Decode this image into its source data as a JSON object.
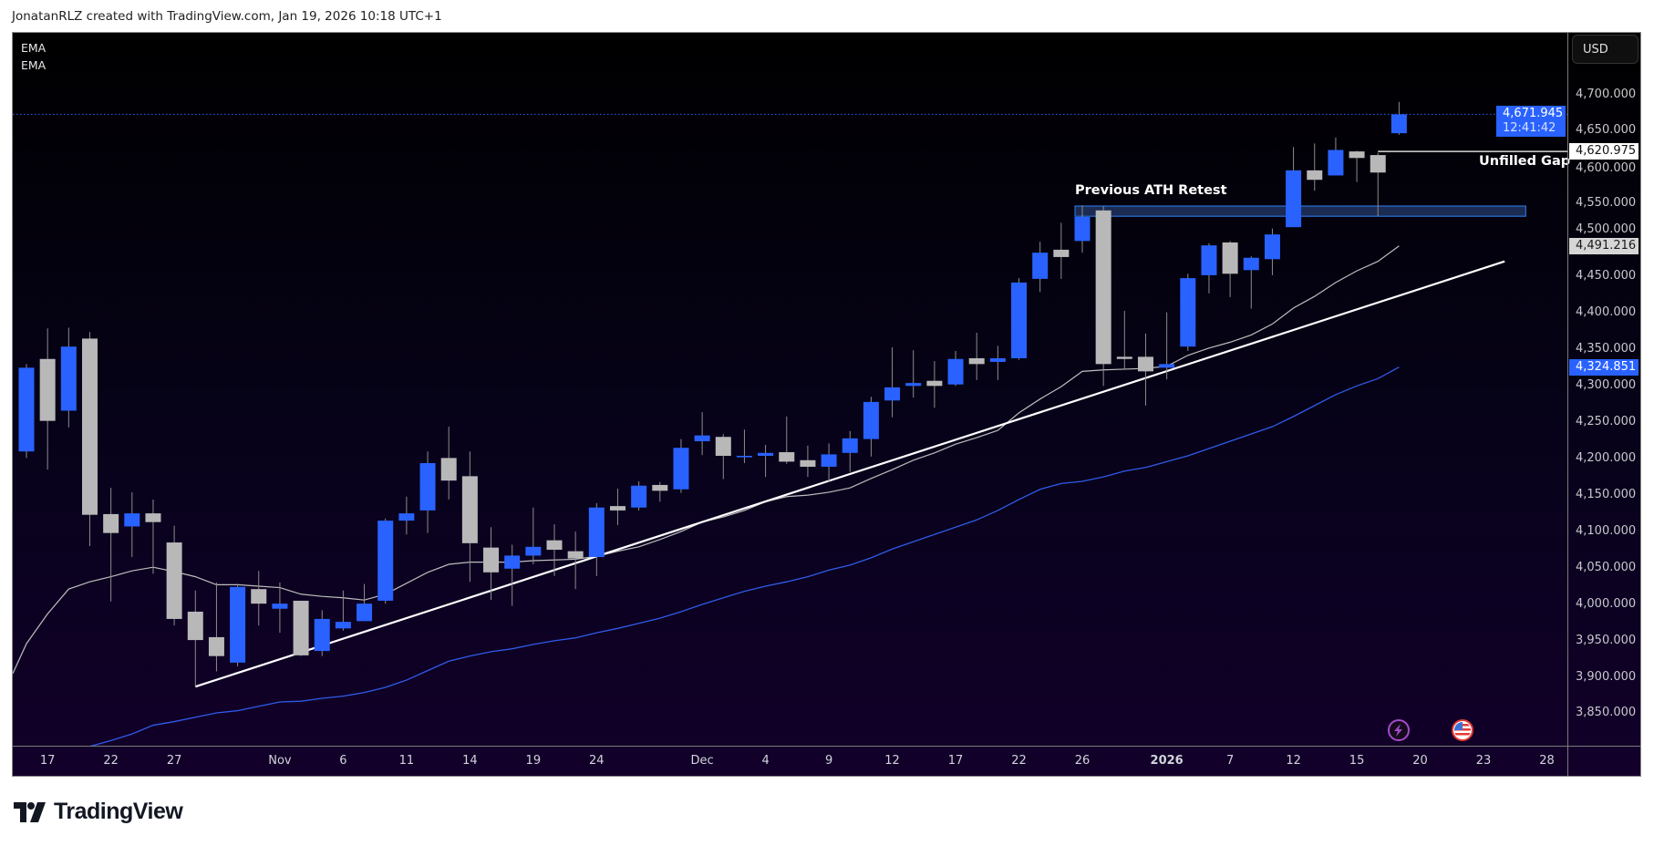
{
  "header": {
    "credit": "JonatanRLZ created with TradingView.com, Jan 19, 2026 10:18 UTC+1"
  },
  "legend": {
    "indicators": [
      "EMA",
      "EMA"
    ]
  },
  "price_axis": {
    "currency_button": "USD",
    "labels": [
      "3,850.000",
      "3,900.000",
      "3,950.000",
      "4,000.000",
      "4,050.000",
      "4,100.000",
      "4,150.000",
      "4,200.000",
      "4,250.000",
      "4,300.000",
      "4,350.000",
      "4,400.000",
      "4,450.000",
      "4,500.000",
      "4,550.000",
      "4,600.000",
      "4,650.000",
      "4,700.000"
    ],
    "tags": {
      "last_price": "4,671.945",
      "countdown": "12:41:42",
      "gap_level": "4,620.975",
      "ema_fast": "4,491.216",
      "ema_slow": "4,324.851"
    }
  },
  "time_axis": {
    "labels": [
      {
        "text": "17",
        "date": "2025-10-17"
      },
      {
        "text": "22",
        "date": "2025-10-22"
      },
      {
        "text": "27",
        "date": "2025-10-27"
      },
      {
        "text": "Nov",
        "date": "2025-11-03"
      },
      {
        "text": "6",
        "date": "2025-11-06"
      },
      {
        "text": "11",
        "date": "2025-11-11"
      },
      {
        "text": "14",
        "date": "2025-11-14"
      },
      {
        "text": "19",
        "date": "2025-11-19"
      },
      {
        "text": "24",
        "date": "2025-11-24"
      },
      {
        "text": "Dec",
        "date": "2025-12-01"
      },
      {
        "text": "4",
        "date": "2025-12-04"
      },
      {
        "text": "9",
        "date": "2025-12-09"
      },
      {
        "text": "12",
        "date": "2025-12-12"
      },
      {
        "text": "17",
        "date": "2025-12-17"
      },
      {
        "text": "22",
        "date": "2025-12-22"
      },
      {
        "text": "26",
        "date": "2025-12-26"
      },
      {
        "text": "2026",
        "date": "2026-01-02",
        "bold": true
      },
      {
        "text": "7",
        "date": "2026-01-07"
      },
      {
        "text": "12",
        "date": "2026-01-12"
      },
      {
        "text": "15",
        "date": "2026-01-15"
      },
      {
        "text": "20",
        "date": "2026-01-20"
      },
      {
        "text": "23",
        "date": "2026-01-23"
      },
      {
        "text": "28",
        "date": "2026-01-28"
      }
    ]
  },
  "annotations": {
    "ath_label": "Previous ATH Retest",
    "gap_label": "Unfilled Gap"
  },
  "events": [
    {
      "icon": "lightning-icon",
      "date": "2026-01-19"
    },
    {
      "icon": "us-flag-icon",
      "date": "2026-01-22"
    }
  ],
  "colors": {
    "up": "#2962ff",
    "down": "#b8b8b8",
    "wick": "#8c8c8c",
    "ema_fast": "#bdbdbd",
    "ema_slow": "#2f5be8",
    "trendline": "#ffffff",
    "zone_fill": "#1c2b52",
    "zone_border": "#2a6fd6",
    "last_price": "#2962ff"
  },
  "logo": {
    "text": "TradingView"
  },
  "chart_data": {
    "type": "candlestick",
    "ylim": [
      3800,
      4760
    ],
    "y_ticks": [
      3850,
      3900,
      3950,
      4000,
      4050,
      4100,
      4150,
      4200,
      4250,
      4300,
      4350,
      4400,
      4450,
      4500,
      4550,
      4600,
      4650,
      4700
    ],
    "grid": false,
    "candles_fields": [
      "date",
      "open",
      "high",
      "low",
      "close"
    ],
    "candles": [
      [
        "2025-10-16",
        4209,
        4329,
        4200,
        4324
      ],
      [
        "2025-10-17",
        4336,
        4378,
        4184,
        4251
      ],
      [
        "2025-10-20",
        4265,
        4379,
        4242,
        4353
      ],
      [
        "2025-10-21",
        4364,
        4373,
        4079,
        4122
      ],
      [
        "2025-10-22",
        4123,
        4159,
        4003,
        4097
      ],
      [
        "2025-10-23",
        4106,
        4153,
        4064,
        4124
      ],
      [
        "2025-10-24",
        4124,
        4143,
        4041,
        4112
      ],
      [
        "2025-10-27",
        4084,
        4107,
        3970,
        3979
      ],
      [
        "2025-10-28",
        3989,
        4018,
        3886,
        3950
      ],
      [
        "2025-10-29",
        3954,
        4029,
        3907,
        3928
      ],
      [
        "2025-10-30",
        3919,
        4027,
        3914,
        4023
      ],
      [
        "2025-10-31",
        4020,
        4045,
        3970,
        4000
      ],
      [
        "2025-11-03",
        3993,
        4029,
        3960,
        4000
      ],
      [
        "2025-11-04",
        4004,
        4004,
        3928,
        3929
      ],
      [
        "2025-11-05",
        3935,
        3991,
        3928,
        3979
      ],
      [
        "2025-11-06",
        3966,
        4018,
        3963,
        3975
      ],
      [
        "2025-11-07",
        3976,
        4027,
        3976,
        4000
      ],
      [
        "2025-11-10",
        4004,
        4117,
        4000,
        4114
      ],
      [
        "2025-11-11",
        4114,
        4147,
        4095,
        4124
      ],
      [
        "2025-11-12",
        4128,
        4209,
        4097,
        4193
      ],
      [
        "2025-11-13",
        4200,
        4243,
        4143,
        4169
      ],
      [
        "2025-11-14",
        4175,
        4209,
        4030,
        4083
      ],
      [
        "2025-11-17",
        4077,
        4105,
        4005,
        4043
      ],
      [
        "2025-11-18",
        4048,
        4081,
        3997,
        4066
      ],
      [
        "2025-11-19",
        4066,
        4132,
        4054,
        4078
      ],
      [
        "2025-11-20",
        4087,
        4109,
        4038,
        4074
      ],
      [
        "2025-11-21",
        4072,
        4099,
        4020,
        4062
      ],
      [
        "2025-11-24",
        4064,
        4138,
        4038,
        4132
      ],
      [
        "2025-11-25",
        4134,
        4158,
        4108,
        4128
      ],
      [
        "2025-11-26",
        4132,
        4168,
        4128,
        4162
      ],
      [
        "2025-11-27",
        4163,
        4167,
        4140,
        4155
      ],
      [
        "2025-11-28",
        4157,
        4226,
        4152,
        4214
      ],
      [
        "2025-12-01",
        4223,
        4263,
        4204,
        4231
      ],
      [
        "2025-12-02",
        4229,
        4233,
        4171,
        4203
      ],
      [
        "2025-12-03",
        4201,
        4239,
        4193,
        4203
      ],
      [
        "2025-12-04",
        4203,
        4218,
        4174,
        4207
      ],
      [
        "2025-12-05",
        4208,
        4257,
        4192,
        4195
      ],
      [
        "2025-12-08",
        4197,
        4217,
        4174,
        4188
      ],
      [
        "2025-12-09",
        4188,
        4220,
        4167,
        4205
      ],
      [
        "2025-12-10",
        4207,
        4237,
        4181,
        4227
      ],
      [
        "2025-12-11",
        4226,
        4284,
        4202,
        4277
      ],
      [
        "2025-12-12",
        4279,
        4352,
        4256,
        4297
      ],
      [
        "2025-12-15",
        4299,
        4348,
        4283,
        4303
      ],
      [
        "2025-12-16",
        4306,
        4333,
        4269,
        4299
      ],
      [
        "2025-12-17",
        4301,
        4347,
        4299,
        4336
      ],
      [
        "2025-12-18",
        4337,
        4372,
        4307,
        4329
      ],
      [
        "2025-12-19",
        4332,
        4354,
        4307,
        4337
      ],
      [
        "2025-12-22",
        4337,
        4447,
        4335,
        4441
      ],
      [
        "2025-12-23",
        4446,
        4497,
        4428,
        4482
      ],
      [
        "2025-12-24",
        4486,
        4523,
        4446,
        4476
      ],
      [
        "2025-12-26",
        4498,
        4547,
        4482,
        4531
      ],
      [
        "2025-12-29",
        4540,
        4546,
        4299,
        4329
      ],
      [
        "2025-12-30",
        4339,
        4402,
        4322,
        4336
      ],
      [
        "2025-12-31",
        4339,
        4371,
        4272,
        4319
      ],
      [
        "2026-01-02",
        4324,
        4400,
        4308,
        4329
      ],
      [
        "2026-01-05",
        4353,
        4453,
        4347,
        4447
      ],
      [
        "2026-01-06",
        4451,
        4495,
        4426,
        4492
      ],
      [
        "2026-01-07",
        4496,
        4498,
        4421,
        4453
      ],
      [
        "2026-01-08",
        4458,
        4477,
        4405,
        4475
      ],
      [
        "2026-01-09",
        4473,
        4515,
        4451,
        4507
      ],
      [
        "2026-01-12",
        4517,
        4627,
        4517,
        4595
      ],
      [
        "2026-01-13",
        4595,
        4632,
        4567,
        4582
      ],
      [
        "2026-01-14",
        4588,
        4640,
        4588,
        4623
      ],
      [
        "2026-01-15",
        4621,
        4622,
        4579,
        4612
      ],
      [
        "2026-01-16",
        4616,
        4619,
        4532,
        4592
      ],
      [
        "2026-01-19",
        4646,
        4689,
        4644,
        4671.945
      ]
    ],
    "ema_fast": [
      3945,
      3986,
      4020,
      4030,
      4037,
      4045,
      4050,
      4044,
      4037,
      4026,
      4026,
      4024,
      4022,
      4013,
      4010,
      4008,
      4005,
      4013,
      4028,
      4043,
      4054,
      4057,
      4057,
      4057,
      4059,
      4060,
      4061,
      4065,
      4072,
      4078,
      4088,
      4099,
      4112,
      4119,
      4128,
      4140,
      4147,
      4149,
      4153,
      4159,
      4172,
      4184,
      4197,
      4207,
      4219,
      4228,
      4238,
      4262,
      4281,
      4298,
      4319,
      4321,
      4322,
      4323,
      4326,
      4341,
      4351,
      4359,
      4369,
      4384,
      4406,
      4422,
      4441,
      4457,
      4470,
      4491.216
    ],
    "ema_slow": [
      3770,
      3782,
      3794,
      3804,
      3812,
      3821,
      3833,
      3838,
      3844,
      3850,
      3853,
      3859,
      3865,
      3866,
      3870,
      3873,
      3878,
      3885,
      3895,
      3908,
      3921,
      3928,
      3934,
      3938,
      3944,
      3949,
      3953,
      3960,
      3966,
      3973,
      3980,
      3989,
      3999,
      4008,
      4017,
      4024,
      4030,
      4037,
      4046,
      4053,
      4063,
      4075,
      4085,
      4095,
      4105,
      4115,
      4128,
      4143,
      4157,
      4165,
      4168,
      4174,
      4182,
      4187,
      4195,
      4203,
      4213,
      4223,
      4233,
      4243,
      4257,
      4272,
      4287,
      4299,
      4309,
      4324.851
    ],
    "last_price": 4671.945,
    "trendline": {
      "from": {
        "date": "2025-10-28",
        "price": 3886
      },
      "to": {
        "date": "2026-01-26",
        "price": 4470
      }
    },
    "zone": {
      "from_date": "2025-12-26",
      "to_date": "2026-01-27",
      "top": 4546,
      "bottom": 4532
    },
    "gap_line": {
      "from_date": "2026-01-16",
      "price": 4620.975
    }
  }
}
